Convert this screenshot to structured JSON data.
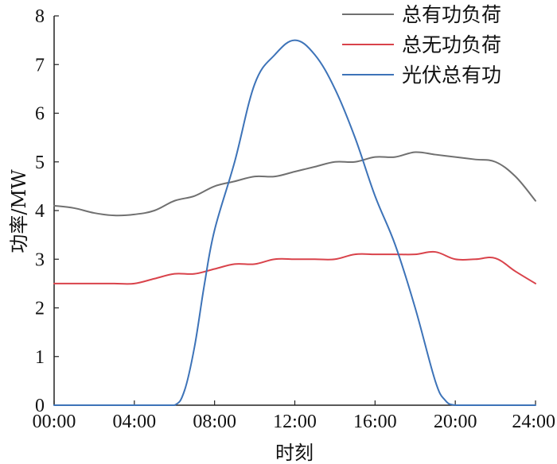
{
  "chart_data": {
    "type": "line",
    "title": "",
    "xlabel": "时刻",
    "ylabel": "功率/MW",
    "xlim": [
      0,
      24
    ],
    "ylim": [
      0,
      8
    ],
    "x_ticks": [
      0,
      4,
      8,
      12,
      16,
      20,
      24
    ],
    "x_tick_labels": [
      "00:00",
      "04:00",
      "08:00",
      "12:00",
      "16:00",
      "20:00",
      "24:00"
    ],
    "y_ticks": [
      0,
      1,
      2,
      3,
      4,
      5,
      6,
      7,
      8
    ],
    "y_tick_labels": [
      "0",
      "1",
      "2",
      "3",
      "4",
      "5",
      "6",
      "7",
      "8"
    ],
    "grid": false,
    "legend_position": "top-right",
    "series": [
      {
        "name": "总有功负荷",
        "color": "#707070",
        "x": [
          0,
          1,
          2,
          3,
          4,
          5,
          6,
          7,
          8,
          9,
          10,
          11,
          12,
          13,
          14,
          15,
          16,
          17,
          18,
          19,
          20,
          21,
          22,
          23,
          24
        ],
        "values": [
          4.1,
          4.05,
          3.95,
          3.9,
          3.92,
          4.0,
          4.2,
          4.3,
          4.5,
          4.6,
          4.7,
          4.7,
          4.8,
          4.9,
          5.0,
          5.0,
          5.1,
          5.1,
          5.2,
          5.15,
          5.1,
          5.05,
          5.0,
          4.7,
          4.2
        ]
      },
      {
        "name": "总无功负荷",
        "color": "#d9434b",
        "x": [
          0,
          1,
          2,
          3,
          4,
          5,
          6,
          7,
          8,
          9,
          10,
          11,
          12,
          13,
          14,
          15,
          16,
          17,
          18,
          19,
          20,
          21,
          22,
          23,
          24
        ],
        "values": [
          2.5,
          2.5,
          2.5,
          2.5,
          2.5,
          2.6,
          2.7,
          2.7,
          2.8,
          2.9,
          2.9,
          3.0,
          3.0,
          3.0,
          3.0,
          3.1,
          3.1,
          3.1,
          3.1,
          3.15,
          3.0,
          3.0,
          3.02,
          2.75,
          2.5
        ]
      },
      {
        "name": "光伏总有功",
        "color": "#3d73b8",
        "x": [
          0,
          1,
          2,
          3,
          4,
          5,
          6,
          6.5,
          7,
          7.5,
          8,
          9,
          10,
          11,
          12,
          13,
          14,
          15,
          16,
          17,
          18,
          19,
          19.5,
          20,
          21,
          22,
          23,
          24
        ],
        "values": [
          0,
          0,
          0,
          0,
          0,
          0,
          0,
          0.3,
          1.2,
          2.5,
          3.6,
          5.0,
          6.6,
          7.2,
          7.5,
          7.2,
          6.5,
          5.5,
          4.3,
          3.3,
          2.0,
          0.5,
          0.1,
          0,
          0,
          0,
          0,
          0
        ]
      }
    ]
  }
}
